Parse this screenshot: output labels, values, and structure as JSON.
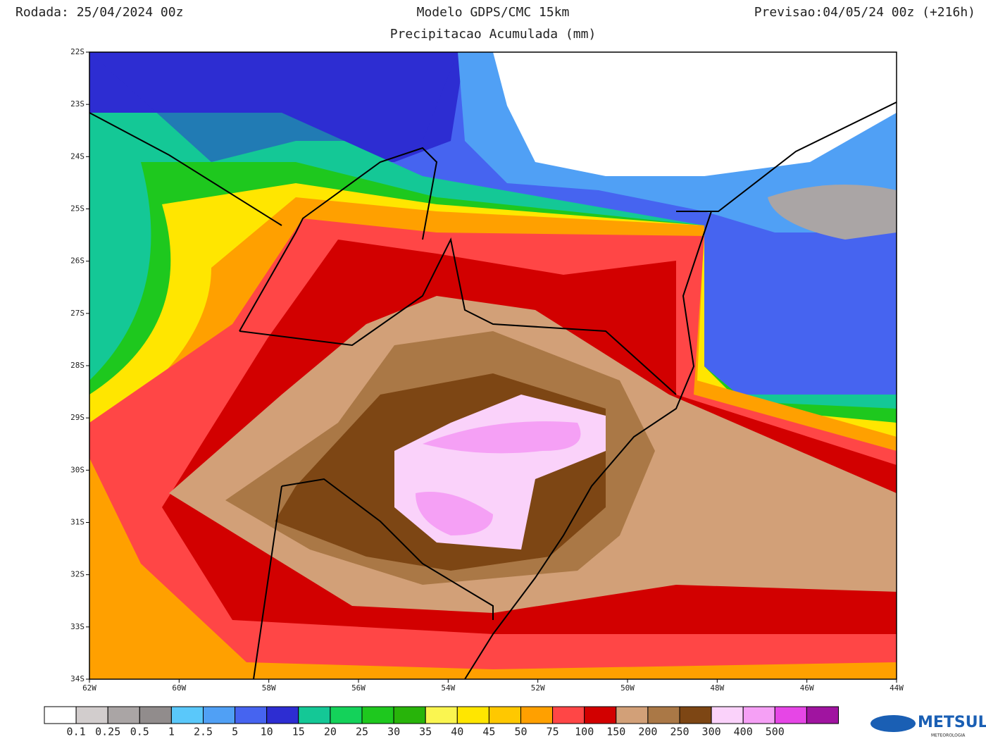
{
  "header": {
    "run": "Rodada: 25/04/2024 00z",
    "model": "Modelo GDPS/CMC 15km",
    "subtitle": "Precipitacao Acumulada (mm)",
    "forecast": "Previsao:04/05/24 00z (+216h)"
  },
  "map": {
    "lat_labels": [
      "22S",
      "23S",
      "24S",
      "25S",
      "26S",
      "27S",
      "28S",
      "29S",
      "30S",
      "31S",
      "32S",
      "33S",
      "34S"
    ],
    "lon_labels": [
      "62W",
      "60W",
      "58W",
      "56W",
      "54W",
      "52W",
      "50W",
      "48W",
      "46W",
      "44W"
    ]
  },
  "colorbar": {
    "colors": [
      "#ffffff",
      "#d2cdcd",
      "#aaa5a5",
      "#918c8c",
      "#5ac8fa",
      "#50a0f5",
      "#4664f0",
      "#2d2dd2",
      "#14c896",
      "#14d25a",
      "#1ec81e",
      "#28b40a",
      "#faf550",
      "#ffe600",
      "#ffc800",
      "#ffa000",
      "#ff4646",
      "#d20000",
      "#d2a078",
      "#aa7846",
      "#7d4614",
      "#fad2fa",
      "#f5a0f5",
      "#e646e6",
      "#a014a0"
    ],
    "labels": [
      "0.1",
      "0.25",
      "0.5",
      "1",
      "2.5",
      "5",
      "10",
      "15",
      "20",
      "25",
      "30",
      "35",
      "40",
      "45",
      "50",
      "75",
      "100",
      "150",
      "200",
      "250",
      "300",
      "400",
      "500"
    ]
  },
  "logo": {
    "name": "METSUL",
    "tagline": "METEOROLOGIA"
  }
}
